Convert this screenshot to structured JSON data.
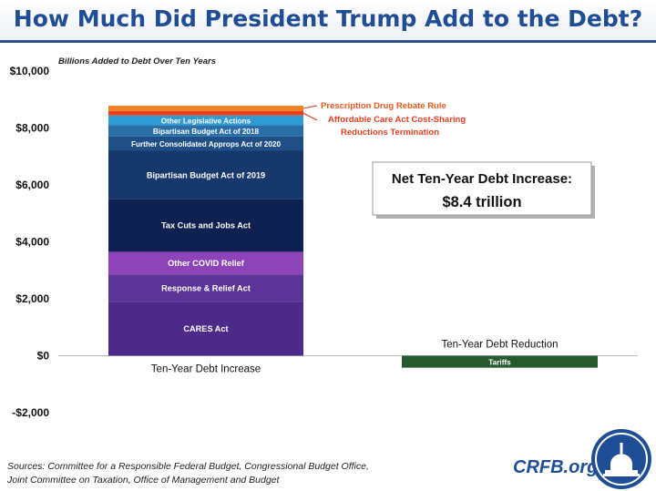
{
  "title": "How Much Did President Trump Add to the Debt?",
  "chart_data": {
    "type": "bar",
    "stacked": true,
    "ylabel": "Billions Added to Debt Over Ten Years",
    "ylim": [
      -2000,
      10000
    ],
    "yticks": [
      -2000,
      0,
      2000,
      4000,
      6000,
      8000,
      10000
    ],
    "ytick_labels": [
      "-$2,000",
      "$0",
      "$2,000",
      "$4,000",
      "$6,000",
      "$8,000",
      "$10,000"
    ],
    "categories": [
      "Ten-Year Debt Increase",
      "Ten-Year Debt Reduction"
    ],
    "series": [
      {
        "name": "CARES Act",
        "values": [
          1900,
          0
        ],
        "color": "#4b2a8a"
      },
      {
        "name": "Response & Relief Act",
        "values": [
          950,
          0
        ],
        "color": "#5b3497"
      },
      {
        "name": "Other COVID Relief",
        "values": [
          800,
          0
        ],
        "color": "#8e44b8"
      },
      {
        "name": "Tax Cuts and Jobs Act",
        "values": [
          1850,
          0
        ],
        "color": "#0e2150"
      },
      {
        "name": "Bipartisan Budget Act of 2019",
        "values": [
          1700,
          0
        ],
        "color": "#17386d"
      },
      {
        "name": "Further Consolidated Approps Act of 2020",
        "values": [
          500,
          0
        ],
        "color": "#1f4f86"
      },
      {
        "name": "Bipartisan Budget Act of 2018",
        "values": [
          400,
          0
        ],
        "color": "#2a6fa7"
      },
      {
        "name": "Other Legislative Actions",
        "values": [
          340,
          0
        ],
        "color": "#2e9bd4"
      },
      {
        "name": "Affordable Care Act Cost-Sharing Reductions Termination",
        "values": [
          160,
          0
        ],
        "color": "#e8401f"
      },
      {
        "name": "Prescription Drug Rebate Rule",
        "values": [
          180,
          0
        ],
        "color": "#f07f1e"
      },
      {
        "name": "Tariffs",
        "values": [
          0,
          -420
        ],
        "color": "#27592f"
      }
    ],
    "callouts": [
      {
        "lines": [
          "Prescription Drug Rebate Rule"
        ],
        "color": "#e8591f"
      },
      {
        "lines": [
          "Affordable Care Act Cost-Sharing",
          "Reductions Termination"
        ],
        "color": "#e8401f"
      }
    ],
    "annotation": {
      "line1": "Net Ten-Year Debt Increase:",
      "line2": "$8.4 trillion"
    },
    "reduction_label": "Ten-Year Debt Reduction"
  },
  "footer": {
    "sources_line1": "Sources: Committee for a Responsible Federal Budget, Congressional Budget Office,",
    "sources_line2": "Joint Committee on Taxation, Office of Management and Budget",
    "site": "CRFB.org"
  },
  "logo_icon": "capitol-dome-icon"
}
